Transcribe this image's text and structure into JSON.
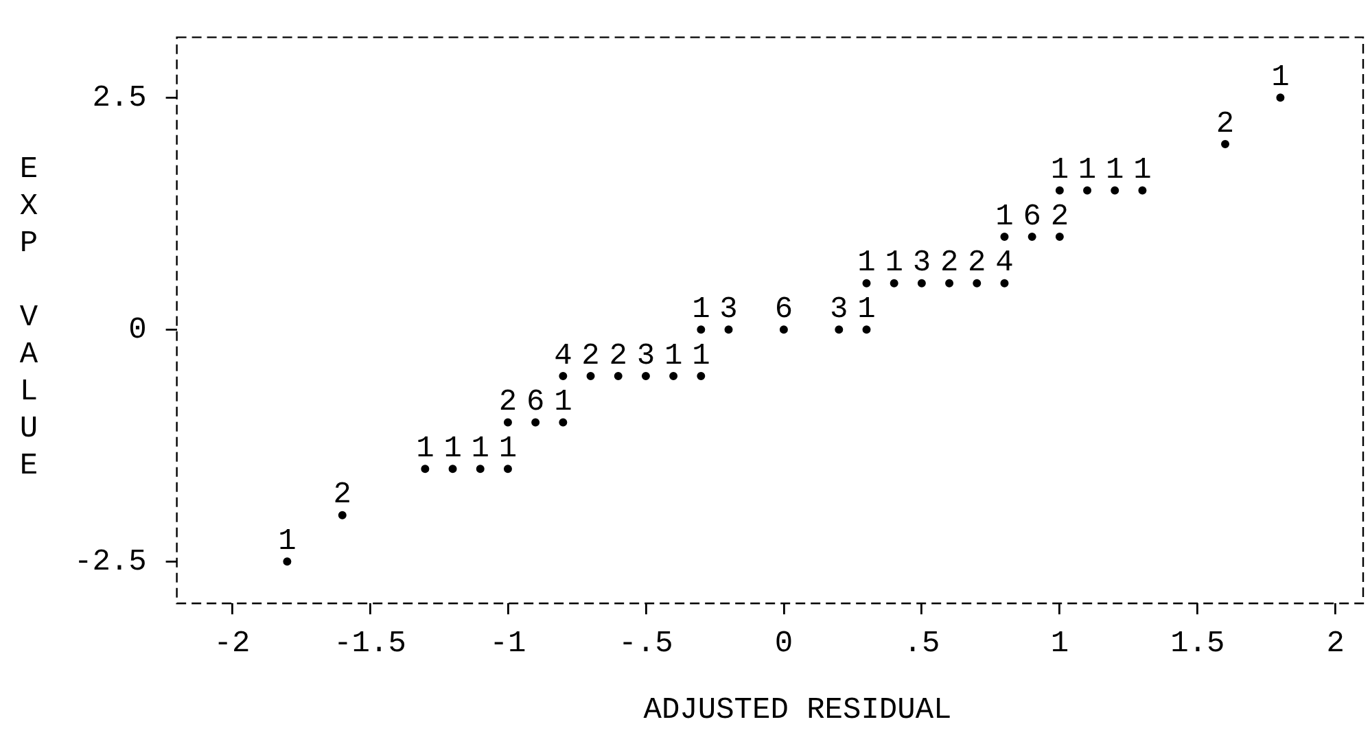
{
  "chart_data": {
    "type": "scatter",
    "xlabel": "ADJUSTED RESIDUAL",
    "ylabel": "EXP VALUE",
    "xlim": [
      -2.2,
      2.1
    ],
    "ylim": [
      -2.95,
      3.15
    ],
    "xticks": [
      -2,
      -1.5,
      -1,
      {
        "value": -0.5,
        "label": "-.5"
      },
      0,
      {
        "value": 0.5,
        "label": ".5"
      },
      1,
      1.5,
      2
    ],
    "yticks": [
      -2.5,
      0,
      2.5
    ],
    "grid": false,
    "legend": false,
    "marker": "circle",
    "series": [
      {
        "color": "#000000",
        "x": [
          -1.8,
          -1.6,
          -1.3,
          -1.2,
          -1.1,
          -1.0,
          -1.0,
          -0.9,
          -0.8,
          -0.8,
          -0.7,
          -0.6,
          -0.5,
          -0.4,
          -0.3,
          -0.3,
          -0.2,
          0,
          0.2,
          0.3,
          0.3,
          0.4,
          0.5,
          0.6,
          0.7,
          0.8,
          0.8,
          0.9,
          1.0,
          1.0,
          1.1,
          1.2,
          1.3,
          1.6,
          1.8
        ],
        "values": [
          -2.5,
          -2,
          -1.5,
          -1.5,
          -1.5,
          -1.5,
          -1,
          -1,
          -1,
          -0.5,
          -0.5,
          -0.5,
          -0.5,
          -0.5,
          -0.5,
          0,
          0,
          0,
          0,
          0,
          0.5,
          0.5,
          0.5,
          0.5,
          0.5,
          0.5,
          1,
          1,
          1,
          1.5,
          1.5,
          1.5,
          1.5,
          2,
          2.5
        ]
      }
    ],
    "annotations": [
      {
        "text": "1",
        "x": -1.8,
        "y": -2.5
      },
      {
        "text": "2",
        "x": -1.6,
        "y": -2
      },
      {
        "text": "1",
        "x": -1.3,
        "y": -1.5
      },
      {
        "text": "1",
        "x": -1.2,
        "y": -1.5
      },
      {
        "text": "1",
        "x": -1.1,
        "y": -1.5
      },
      {
        "text": "1",
        "x": -1.0,
        "y": -1.5
      },
      {
        "text": "2",
        "x": -1.0,
        "y": -1
      },
      {
        "text": "6",
        "x": -0.9,
        "y": -1
      },
      {
        "text": "1",
        "x": -0.8,
        "y": -1
      },
      {
        "text": "4",
        "x": -0.8,
        "y": -0.5
      },
      {
        "text": "2",
        "x": -0.7,
        "y": -0.5
      },
      {
        "text": "2",
        "x": -0.6,
        "y": -0.5
      },
      {
        "text": "3",
        "x": -0.5,
        "y": -0.5
      },
      {
        "text": "1",
        "x": -0.4,
        "y": -0.5
      },
      {
        "text": "1",
        "x": -0.3,
        "y": -0.5
      },
      {
        "text": "1",
        "x": -0.3,
        "y": 0
      },
      {
        "text": "3",
        "x": -0.2,
        "y": 0
      },
      {
        "text": "6",
        "x": 0,
        "y": 0
      },
      {
        "text": "3",
        "x": 0.2,
        "y": 0
      },
      {
        "text": "1",
        "x": 0.3,
        "y": 0
      },
      {
        "text": "1",
        "x": 0.3,
        "y": 0.5
      },
      {
        "text": "1",
        "x": 0.4,
        "y": 0.5
      },
      {
        "text": "3",
        "x": 0.5,
        "y": 0.5
      },
      {
        "text": "2",
        "x": 0.6,
        "y": 0.5
      },
      {
        "text": "2",
        "x": 0.7,
        "y": 0.5
      },
      {
        "text": "4",
        "x": 0.8,
        "y": 0.5
      },
      {
        "text": "1",
        "x": 0.8,
        "y": 1
      },
      {
        "text": "6",
        "x": 0.9,
        "y": 1
      },
      {
        "text": "2",
        "x": 1.0,
        "y": 1
      },
      {
        "text": "1",
        "x": 1.0,
        "y": 1.5
      },
      {
        "text": "1",
        "x": 1.1,
        "y": 1.5
      },
      {
        "text": "1",
        "x": 1.2,
        "y": 1.5
      },
      {
        "text": "1",
        "x": 1.3,
        "y": 1.5
      },
      {
        "text": "2",
        "x": 1.6,
        "y": 2
      },
      {
        "text": "1",
        "x": 1.8,
        "y": 2.5
      }
    ]
  }
}
